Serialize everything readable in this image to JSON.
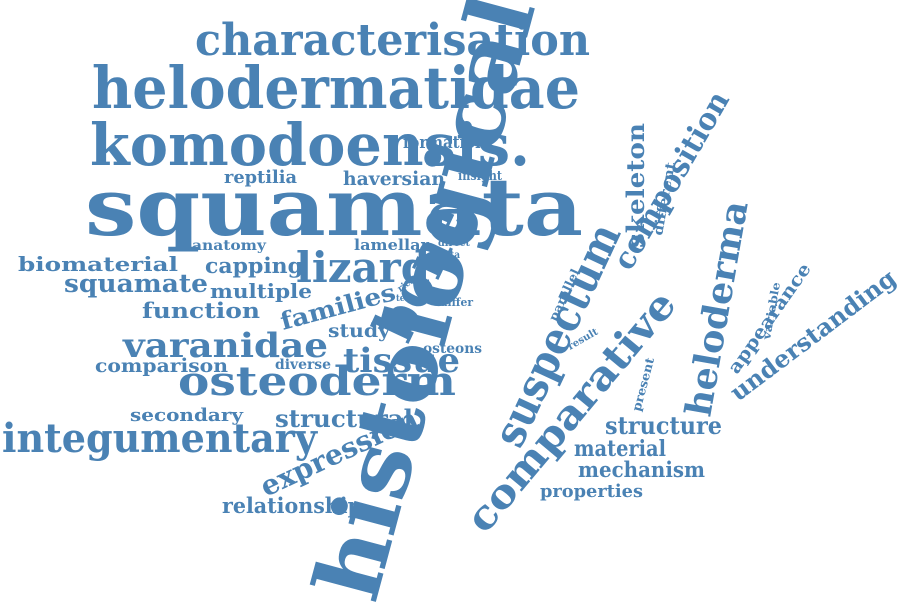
{
  "color": "#4a82b4",
  "words": [
    {
      "text": "characterisation"
    },
    {
      "text": "helodermatidae"
    },
    {
      "text": "komodoensis."
    },
    {
      "text": "squamata"
    },
    {
      "text": "histological"
    },
    {
      "text": "formation"
    },
    {
      "text": "reptilia"
    },
    {
      "text": "haversian"
    },
    {
      "text": "insight"
    },
    {
      "text": "skeleton"
    },
    {
      "text": "different"
    },
    {
      "text": "composition"
    },
    {
      "text": "anatomy"
    },
    {
      "text": "lamellar"
    },
    {
      "text": "direct"
    },
    {
      "text": "data"
    },
    {
      "text": "biomaterial"
    },
    {
      "text": "capping"
    },
    {
      "text": "lizard"
    },
    {
      "text": "squamate"
    },
    {
      "text": "multiple"
    },
    {
      "text": "bone"
    },
    {
      "text": "function"
    },
    {
      "text": "families"
    },
    {
      "text": "rich"
    },
    {
      "text": "term"
    },
    {
      "text": "differ"
    },
    {
      "text": "parallel"
    },
    {
      "text": "varanidae"
    },
    {
      "text": "study"
    },
    {
      "text": "comparison"
    },
    {
      "text": "diverse"
    },
    {
      "text": "osteons"
    },
    {
      "text": "tissue"
    },
    {
      "text": "osteoderm"
    },
    {
      "text": "secondary"
    },
    {
      "text": "structural"
    },
    {
      "text": "integumentary"
    },
    {
      "text": "expression"
    },
    {
      "text": "relationship"
    },
    {
      "text": "suspectum"
    },
    {
      "text": "comparative"
    },
    {
      "text": "heloderma"
    },
    {
      "text": "result"
    },
    {
      "text": "present"
    },
    {
      "text": "variable"
    },
    {
      "text": "appearance"
    },
    {
      "text": "understanding"
    },
    {
      "text": "structure"
    },
    {
      "text": "material"
    },
    {
      "text": "mechanism"
    },
    {
      "text": "properties"
    }
  ]
}
